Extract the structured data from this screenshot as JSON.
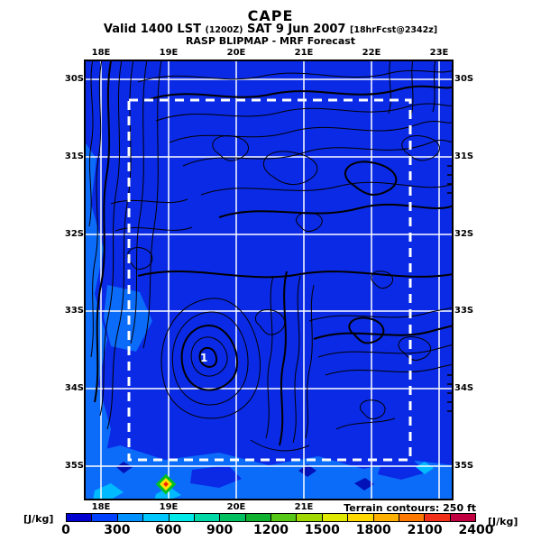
{
  "title": "CAPE",
  "subtitle": {
    "valid_prefix": "Valid 1400 LST ",
    "zulu_time": "(1200Z)",
    "date_part": " SAT 9 Jun 2007 ",
    "fcst_part": "[18hrFcst@2342z]"
  },
  "model_line": "RASP BLIPMAP - MRF Forecast",
  "map": {
    "lon_tick_labels": [
      "18E",
      "19E",
      "20E",
      "21E",
      "22E",
      "23E"
    ],
    "lat_tick_labels": [
      "30S",
      "31S",
      "32S",
      "33S",
      "34S",
      "35S"
    ],
    "bottom_lon_tick_labels": [
      "18E",
      "19E",
      "20E",
      "21E"
    ],
    "annotation_label": "1",
    "terrain_note": "Terrain contours: 250 ft",
    "colors": {
      "background_cape_fill": "#0a2ae6",
      "light_cape_fill": "#0c6cfa",
      "cyan_cape_fill": "#00baff",
      "dark_cape_fill": "#0012b8",
      "gridline": "#ffffff",
      "inner_domain_border": "#ffffff",
      "contour": "#000000"
    },
    "marker": {
      "outer": "#00c020",
      "middle": "#ffe000",
      "center": "#ff2000"
    }
  },
  "colorbar": {
    "unit_left": "[J/kg]",
    "unit_right": "[J/kg]",
    "tick_labels": [
      "0",
      "300",
      "600",
      "900",
      "1200",
      "1500",
      "1800",
      "2100",
      "2400"
    ],
    "segment_colors": [
      "#0000d0",
      "#0040ff",
      "#0090ff",
      "#00c8ff",
      "#00e8e8",
      "#00d8a8",
      "#00c060",
      "#10b030",
      "#58c818",
      "#a0d800",
      "#e0e800",
      "#ffd800",
      "#ffb000",
      "#ff7800",
      "#f03018",
      "#c00040"
    ]
  },
  "chart_data": {
    "type": "heatmap",
    "title": "CAPE",
    "subtitle": "Valid 1400 LST (1200Z) SAT 9 Jun 2007 [18hrFcst@2342z]",
    "source": "RASP BLIPMAP - MRF Forecast",
    "units": "J/kg",
    "x_ticks": [
      "18E",
      "19E",
      "20E",
      "21E",
      "22E",
      "23E"
    ],
    "y_ticks": [
      "30S",
      "31S",
      "32S",
      "33S",
      "34S",
      "35S"
    ],
    "colorbar": {
      "min": 0,
      "max": 2400,
      "colors": 16,
      "value_per_color": 150,
      "label_step": 300
    },
    "terrain_contour_interval": "250 ft",
    "inner_domain": "white dashed nest rectangle spanning about 18.4E-22.6E and 30.3S-34.9S",
    "field_summary": "CAPE mostly 0-300 J/kg (blue) over whole domain; patches of 300-600 J/kg (lighter blue / cyan) along the west coast and southern edge; one isolated bullseye maximum ~1950-2100 J/kg (red/yellow/green diamond) near 18.9E 34.7S; black terrain contours densely packed over the mountain ranges",
    "annotations": [
      {
        "text": "1",
        "lon": "~19.5E",
        "lat": "~33.6S"
      }
    ]
  }
}
